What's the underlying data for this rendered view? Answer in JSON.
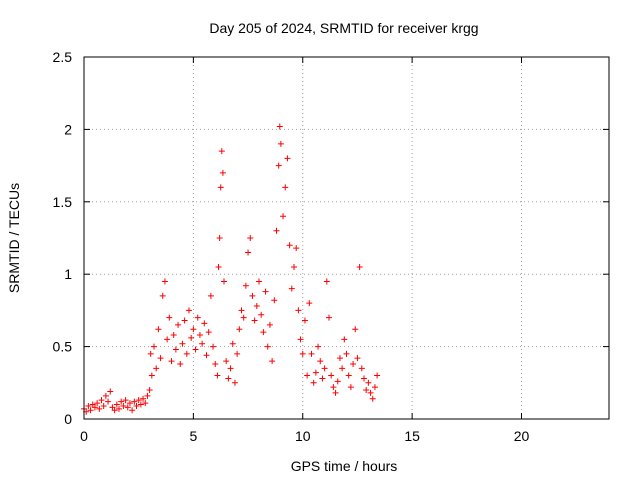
{
  "chart_data": {
    "type": "scatter",
    "title": "Day 205 of 2024, SRMTID for receiver krgg",
    "xlabel": "GPS time / hours",
    "ylabel": "SRMTID / TECUs",
    "xlim": [
      0,
      24
    ],
    "ylim": [
      0,
      2.5
    ],
    "x_ticks": [
      0,
      5,
      10,
      15,
      20
    ],
    "y_ticks": [
      0,
      0.5,
      1,
      1.5,
      2,
      2.5
    ],
    "x_tick_labels": [
      "0",
      "5",
      "10",
      "15",
      "20"
    ],
    "y_tick_labels": [
      "0",
      "0.5",
      "1",
      "1.5",
      "2",
      "2.5"
    ],
    "grid": true,
    "marker": "+",
    "series": [
      {
        "name": "SRMTID",
        "color": "#ff0000",
        "points": [
          [
            0.0,
            0.07
          ],
          [
            0.1,
            0.05
          ],
          [
            0.2,
            0.09
          ],
          [
            0.3,
            0.06
          ],
          [
            0.4,
            0.1
          ],
          [
            0.5,
            0.08
          ],
          [
            0.6,
            0.11
          ],
          [
            0.7,
            0.07
          ],
          [
            0.8,
            0.13
          ],
          [
            0.9,
            0.09
          ],
          [
            1.0,
            0.16
          ],
          [
            1.1,
            0.12
          ],
          [
            1.2,
            0.19
          ],
          [
            1.3,
            0.08
          ],
          [
            1.4,
            0.06
          ],
          [
            1.5,
            0.1
          ],
          [
            1.6,
            0.07
          ],
          [
            1.7,
            0.12
          ],
          [
            1.8,
            0.09
          ],
          [
            1.9,
            0.13
          ],
          [
            2.0,
            0.08
          ],
          [
            2.1,
            0.11
          ],
          [
            2.2,
            0.06
          ],
          [
            2.3,
            0.12
          ],
          [
            2.4,
            0.09
          ],
          [
            2.5,
            0.13
          ],
          [
            2.6,
            0.1
          ],
          [
            2.7,
            0.14
          ],
          [
            2.8,
            0.11
          ],
          [
            2.9,
            0.16
          ],
          [
            3.0,
            0.2
          ],
          [
            3.05,
            0.45
          ],
          [
            3.1,
            0.3
          ],
          [
            3.2,
            0.5
          ],
          [
            3.3,
            0.35
          ],
          [
            3.4,
            0.62
          ],
          [
            3.5,
            0.42
          ],
          [
            3.6,
            0.85
          ],
          [
            3.7,
            0.95
          ],
          [
            3.8,
            0.55
          ],
          [
            3.9,
            0.7
          ],
          [
            4.0,
            0.4
          ],
          [
            4.1,
            0.58
          ],
          [
            4.2,
            0.48
          ],
          [
            4.3,
            0.65
          ],
          [
            4.4,
            0.38
          ],
          [
            4.5,
            0.52
          ],
          [
            4.6,
            0.68
          ],
          [
            4.7,
            0.45
          ],
          [
            4.8,
            0.75
          ],
          [
            4.9,
            0.56
          ],
          [
            5.0,
            0.62
          ],
          [
            5.1,
            0.48
          ],
          [
            5.2,
            0.7
          ],
          [
            5.3,
            0.58
          ],
          [
            5.4,
            0.52
          ],
          [
            5.5,
            0.66
          ],
          [
            5.6,
            0.44
          ],
          [
            5.7,
            0.6
          ],
          [
            5.8,
            0.85
          ],
          [
            5.9,
            0.5
          ],
          [
            6.0,
            0.38
          ],
          [
            6.1,
            0.3
          ],
          [
            6.15,
            1.05
          ],
          [
            6.2,
            1.25
          ],
          [
            6.25,
            1.6
          ],
          [
            6.3,
            1.85
          ],
          [
            6.35,
            1.7
          ],
          [
            6.4,
            0.95
          ],
          [
            6.5,
            0.4
          ],
          [
            6.6,
            0.28
          ],
          [
            6.7,
            0.35
          ],
          [
            6.8,
            0.52
          ],
          [
            6.9,
            0.25
          ],
          [
            7.0,
            0.45
          ],
          [
            7.1,
            0.62
          ],
          [
            7.2,
            0.75
          ],
          [
            7.3,
            0.7
          ],
          [
            7.4,
            0.92
          ],
          [
            7.5,
            1.15
          ],
          [
            7.6,
            1.25
          ],
          [
            7.7,
            0.85
          ],
          [
            7.8,
            0.68
          ],
          [
            7.9,
            0.78
          ],
          [
            8.0,
            0.95
          ],
          [
            8.1,
            0.72
          ],
          [
            8.2,
            0.6
          ],
          [
            8.3,
            0.88
          ],
          [
            8.4,
            0.5
          ],
          [
            8.5,
            0.65
          ],
          [
            8.6,
            0.4
          ],
          [
            8.7,
            0.82
          ],
          [
            8.8,
            1.3
          ],
          [
            8.9,
            1.75
          ],
          [
            8.95,
            2.02
          ],
          [
            9.0,
            1.9
          ],
          [
            9.1,
            1.4
          ],
          [
            9.2,
            1.6
          ],
          [
            9.3,
            1.8
          ],
          [
            9.4,
            1.2
          ],
          [
            9.5,
            0.9
          ],
          [
            9.6,
            1.05
          ],
          [
            9.7,
            1.18
          ],
          [
            9.8,
            0.75
          ],
          [
            9.9,
            0.55
          ],
          [
            10.0,
            0.45
          ],
          [
            10.1,
            0.68
          ],
          [
            10.2,
            0.3
          ],
          [
            10.3,
            0.8
          ],
          [
            10.4,
            0.45
          ],
          [
            10.5,
            0.25
          ],
          [
            10.6,
            0.32
          ],
          [
            10.7,
            0.5
          ],
          [
            10.8,
            0.4
          ],
          [
            10.9,
            0.28
          ],
          [
            11.0,
            0.35
          ],
          [
            11.1,
            0.95
          ],
          [
            11.2,
            0.7
          ],
          [
            11.3,
            0.3
          ],
          [
            11.4,
            0.22
          ],
          [
            11.5,
            0.18
          ],
          [
            11.6,
            0.26
          ],
          [
            11.7,
            0.42
          ],
          [
            11.8,
            0.35
          ],
          [
            11.9,
            0.55
          ],
          [
            12.0,
            0.45
          ],
          [
            12.1,
            0.3
          ],
          [
            12.2,
            0.22
          ],
          [
            12.3,
            0.38
          ],
          [
            12.4,
            0.62
          ],
          [
            12.5,
            0.42
          ],
          [
            12.6,
            1.05
          ],
          [
            12.7,
            0.35
          ],
          [
            12.8,
            0.28
          ],
          [
            12.9,
            0.2
          ],
          [
            13.0,
            0.25
          ],
          [
            13.1,
            0.18
          ],
          [
            13.2,
            0.14
          ],
          [
            13.3,
            0.22
          ],
          [
            13.4,
            0.3
          ]
        ]
      }
    ]
  }
}
